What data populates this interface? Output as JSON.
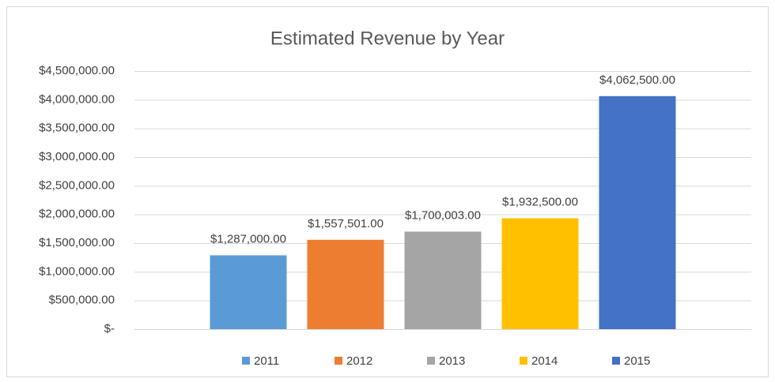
{
  "chart_data": {
    "type": "bar",
    "title": "Estimated Revenue by Year",
    "categories": [
      null
    ],
    "series": [
      {
        "name": "2011",
        "color": "#5b9bd5",
        "values": [
          1287000
        ],
        "value_labels": [
          "$1,287,000.00"
        ]
      },
      {
        "name": "2012",
        "color": "#ed7d31",
        "values": [
          1557501
        ],
        "value_labels": [
          "$1,557,501.00"
        ]
      },
      {
        "name": "2013",
        "color": "#a5a5a5",
        "values": [
          1700003
        ],
        "value_labels": [
          "$1,700,003.00"
        ]
      },
      {
        "name": "2014",
        "color": "#ffc000",
        "values": [
          1932500
        ],
        "value_labels": [
          "$1,932,500.00"
        ]
      },
      {
        "name": "2015",
        "color": "#4472c4",
        "values": [
          4062500
        ],
        "value_labels": [
          "$4,062,500.00"
        ]
      }
    ],
    "ylim": [
      0,
      4500000
    ],
    "yticks": [
      {
        "value": 0,
        "label": "$-"
      },
      {
        "value": 500000,
        "label": "$500,000.00"
      },
      {
        "value": 1000000,
        "label": "$1,000,000.00"
      },
      {
        "value": 1500000,
        "label": "$1,500,000.00"
      },
      {
        "value": 2000000,
        "label": "$2,000,000.00"
      },
      {
        "value": 2500000,
        "label": "$2,500,000.00"
      },
      {
        "value": 3000000,
        "label": "$3,000,000.00"
      },
      {
        "value": 3500000,
        "label": "$3,500,000.00"
      },
      {
        "value": 4000000,
        "label": "$4,000,000.00"
      },
      {
        "value": 4500000,
        "label": "$4,500,000.00"
      }
    ],
    "grid": true,
    "legend": "bottom"
  }
}
